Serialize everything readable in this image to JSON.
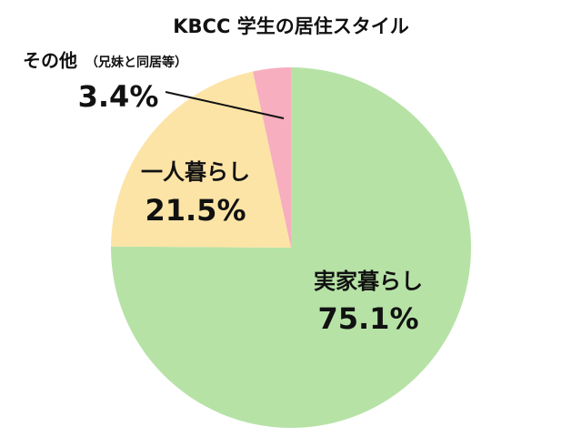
{
  "chart_data": {
    "type": "pie",
    "title": "KBCC 学生の居住スタイル",
    "categories": [
      "実家暮らし",
      "一人暮らし",
      "その他"
    ],
    "category_details": [
      null,
      null,
      "（兄妹と同居等）"
    ],
    "values": [
      75.1,
      21.5,
      3.4
    ],
    "value_labels": [
      "75.1%",
      "21.5%",
      "3.4%"
    ],
    "colors": [
      "#b6e2a6",
      "#fce4a6",
      "#f7aebe"
    ]
  }
}
